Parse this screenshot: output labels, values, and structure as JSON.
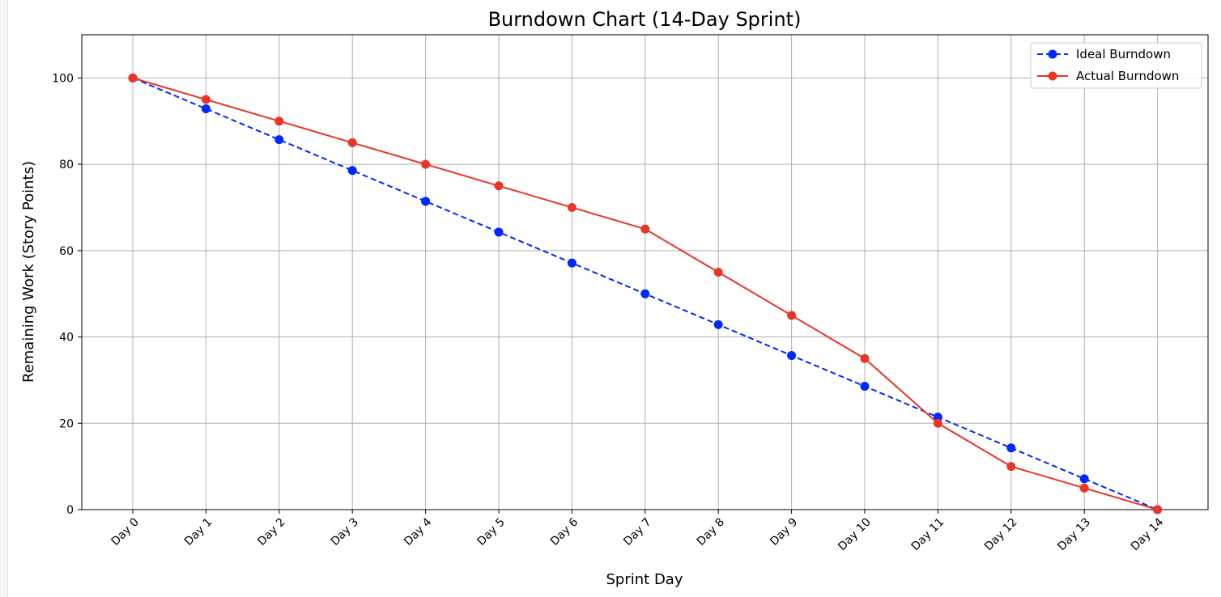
{
  "chart_data": {
    "type": "line",
    "title": "Burndown Chart (14-Day Sprint)",
    "xlabel": "Sprint Day",
    "ylabel": "Remaining Work (Story Points)",
    "categories": [
      "Day 0",
      "Day 1",
      "Day 2",
      "Day 3",
      "Day 4",
      "Day 5",
      "Day 6",
      "Day 7",
      "Day 8",
      "Day 9",
      "Day 10",
      "Day 11",
      "Day 12",
      "Day 13",
      "Day 14"
    ],
    "ylim": [
      0,
      110
    ],
    "yticks": [
      0,
      20,
      40,
      60,
      80,
      100
    ],
    "grid": true,
    "legend_position": "top-right",
    "series": [
      {
        "name": "Ideal Burndown",
        "color": "#0028ff",
        "linestyle": "dashed",
        "marker": "circle",
        "values": [
          100,
          92.86,
          85.71,
          78.57,
          71.43,
          64.29,
          57.14,
          50,
          42.86,
          35.71,
          28.57,
          21.43,
          14.29,
          7.14,
          0
        ]
      },
      {
        "name": "Actual Burndown",
        "color": "#e8352a",
        "linestyle": "solid",
        "marker": "circle",
        "values": [
          100,
          95,
          90,
          85,
          80,
          75,
          70,
          65,
          55,
          45,
          35,
          20,
          10,
          5,
          0
        ]
      }
    ]
  }
}
